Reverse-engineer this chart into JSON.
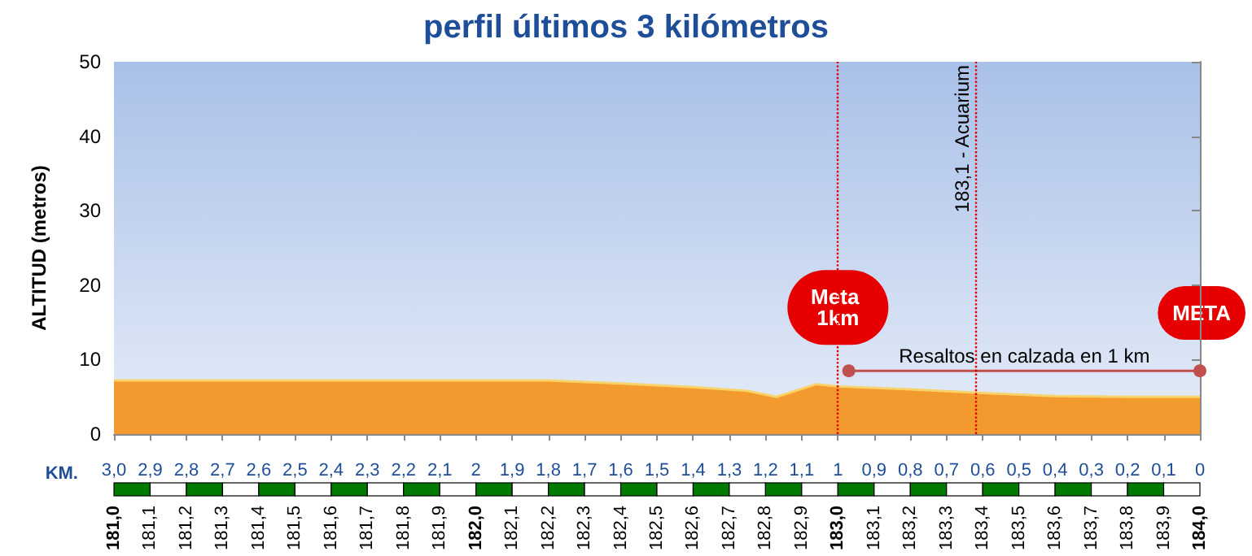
{
  "chart_data": {
    "type": "area",
    "title": "perfil últimos 3 kilómetros",
    "ylabel": "ALTITUD (metros)",
    "x2label": "KM.",
    "x": [
      181,
      181.5,
      182,
      182.2,
      182.4,
      182.6,
      182.75,
      182.83,
      182.94,
      183,
      183.2,
      183.4,
      183.6,
      183.8,
      184
    ],
    "series": [
      {
        "color": "#f39a2e",
        "values": [
          7.2,
          7.2,
          7.2,
          7.2,
          6.8,
          6.3,
          5.8,
          5.0,
          6.7,
          6.4,
          6.0,
          5.5,
          5.1,
          5.0,
          5.0
        ]
      },
      {
        "type": "line",
        "name": "Resaltos en calzada en 1 km",
        "color": "#c0504d",
        "marker": "circle",
        "x": [
          183.03,
          184
        ],
        "values": [
          8.5,
          8.5
        ]
      }
    ],
    "xlim": [
      181,
      184
    ],
    "xticks": [
      {
        "value": 181,
        "label": "181,0"
      },
      {
        "value": 181.1,
        "label": "181,1"
      },
      {
        "value": 181.2,
        "label": "181,2"
      },
      {
        "value": 181.3,
        "label": "181,3"
      },
      {
        "value": 181.4,
        "label": "181,4"
      },
      {
        "value": 181.5,
        "label": "181,5"
      },
      {
        "value": 181.6,
        "label": "181,6"
      },
      {
        "value": 181.7,
        "label": "181,7"
      },
      {
        "value": 181.8,
        "label": "181,8"
      },
      {
        "value": 181.9,
        "label": "181,9"
      },
      {
        "value": 182,
        "label": "182,0"
      },
      {
        "value": 182.1,
        "label": "182,1"
      },
      {
        "value": 182.2,
        "label": "182,2"
      },
      {
        "value": 182.3,
        "label": "182,3"
      },
      {
        "value": 182.4,
        "label": "182,4"
      },
      {
        "value": 182.5,
        "label": "182,5"
      },
      {
        "value": 182.6,
        "label": "182,6"
      },
      {
        "value": 182.7,
        "label": "182,7"
      },
      {
        "value": 182.8,
        "label": "182,8"
      },
      {
        "value": 182.9,
        "label": "182,9"
      },
      {
        "value": 183,
        "label": "183,0"
      },
      {
        "value": 183.1,
        "label": "183,1"
      },
      {
        "value": 183.2,
        "label": "183,2"
      },
      {
        "value": 183.3,
        "label": "183,3"
      },
      {
        "value": 183.4,
        "label": "183,4"
      },
      {
        "value": 183.5,
        "label": "183,5"
      },
      {
        "value": 183.6,
        "label": "183,6"
      },
      {
        "value": 183.7,
        "label": "183,7"
      },
      {
        "value": 183.8,
        "label": "183,8"
      },
      {
        "value": 183.9,
        "label": "183,9"
      },
      {
        "value": 184,
        "label": "184,0"
      }
    ],
    "x2lim": [
      3,
      0
    ],
    "x2ticks": [
      {
        "value": 3,
        "label": "3,0"
      },
      {
        "value": 2.9,
        "label": "2,9"
      },
      {
        "value": 2.8,
        "label": "2,8"
      },
      {
        "value": 2.7,
        "label": "2,7"
      },
      {
        "value": 2.6,
        "label": "2,6"
      },
      {
        "value": 2.5,
        "label": "2,5"
      },
      {
        "value": 2.4,
        "label": "2,4"
      },
      {
        "value": 2.3,
        "label": "2,3"
      },
      {
        "value": 2.2,
        "label": "2,2"
      },
      {
        "value": 2.1,
        "label": "2,1"
      },
      2,
      {
        "value": 1.9,
        "label": "1,9"
      },
      {
        "value": 1.8,
        "label": "1,8"
      },
      {
        "value": 1.7,
        "label": "1,7"
      },
      {
        "value": 1.6,
        "label": "1,6"
      },
      {
        "value": 1.5,
        "label": "1,5"
      },
      {
        "value": 1.4,
        "label": "1,4"
      },
      {
        "value": 1.3,
        "label": "1,3"
      },
      {
        "value": 1.2,
        "label": "1,2"
      },
      {
        "value": 1.1,
        "label": "1,1"
      },
      1,
      {
        "value": 0.9,
        "label": "0,9"
      },
      {
        "value": 0.8,
        "label": "0,8"
      },
      {
        "value": 0.7,
        "label": "0,7"
      },
      {
        "value": 0.6,
        "label": "0,6"
      },
      {
        "value": 0.5,
        "label": "0,5"
      },
      {
        "value": 0.4,
        "label": "0,4"
      },
      {
        "value": 0.3,
        "label": "0,3"
      },
      {
        "value": 0.2,
        "label": "0,2"
      },
      {
        "value": 0.1,
        "label": "0,1"
      },
      0
    ],
    "ylim": [
      0,
      50
    ],
    "yticks": [
      0,
      10,
      20,
      30,
      40,
      50
    ],
    "grid": false,
    "legend": false,
    "ref_lines": [
      {
        "axis": "x",
        "value": 183,
        "color": "#e00000",
        "line_style": "dotted"
      },
      {
        "axis": "x",
        "value": 183.38,
        "label": "183,1 - Acuarium",
        "color": "#e00000",
        "line_style": "dotted"
      }
    ],
    "annotations": [
      {
        "text": "Meta 1km",
        "x": 183,
        "y": 17
      },
      "META"
    ]
  }
}
